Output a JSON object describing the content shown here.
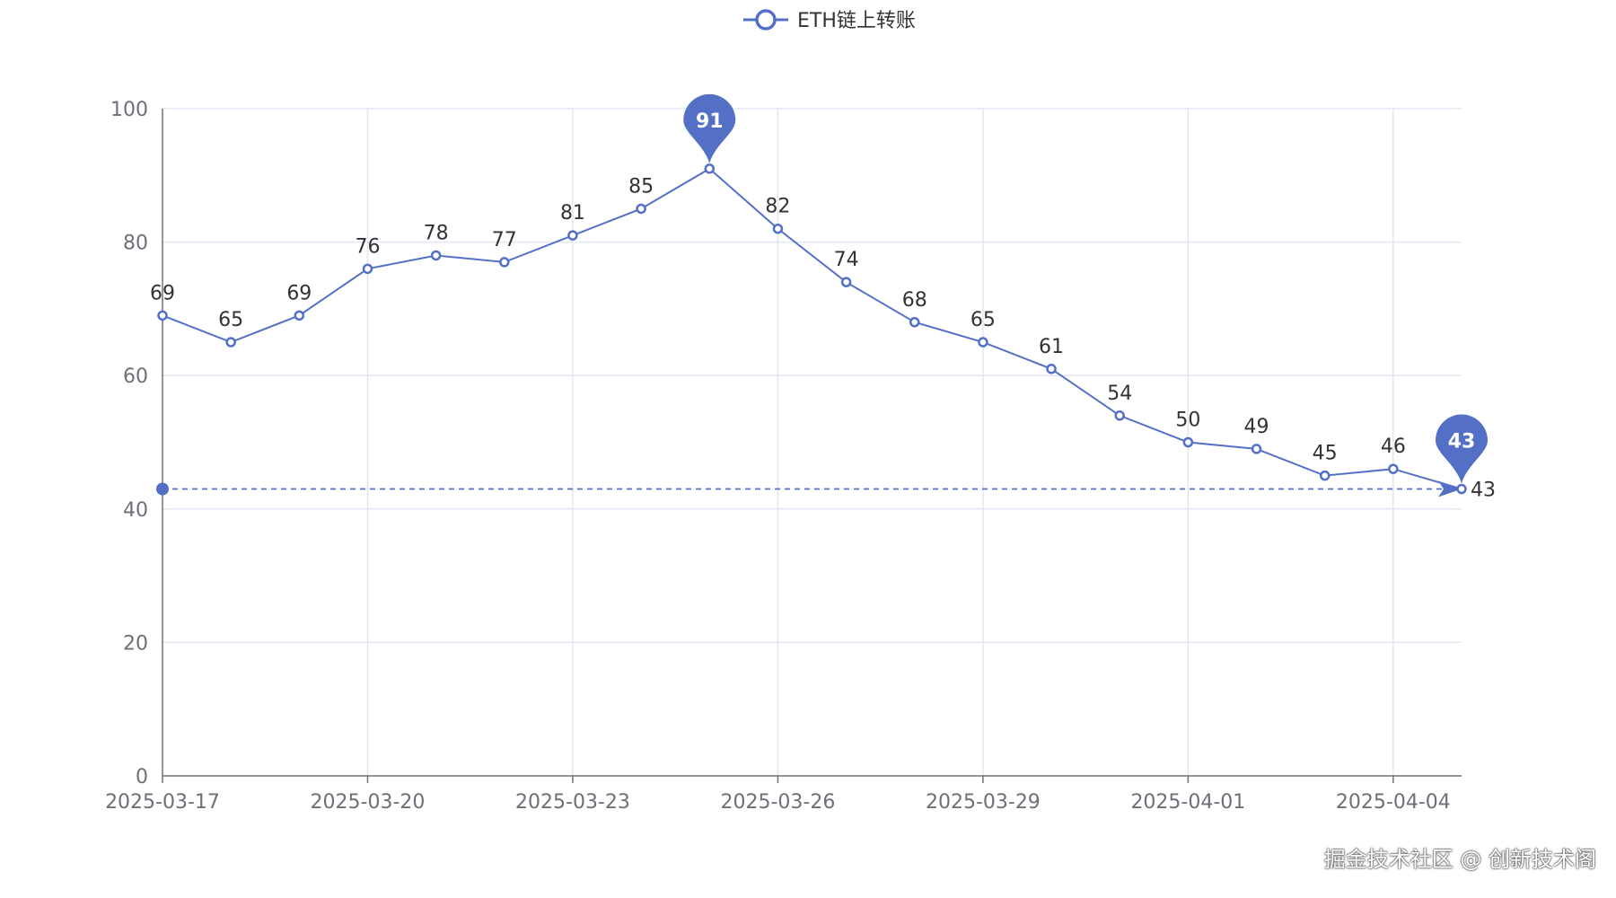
{
  "chart_data": {
    "type": "line",
    "x": [
      "2025-03-17",
      "2025-03-18",
      "2025-03-19",
      "2025-03-20",
      "2025-03-21",
      "2025-03-22",
      "2025-03-23",
      "2025-03-24",
      "2025-03-25",
      "2025-03-26",
      "2025-03-27",
      "2025-03-28",
      "2025-03-29",
      "2025-03-30",
      "2025-03-31",
      "2025-04-01",
      "2025-04-02",
      "2025-04-03",
      "2025-04-04",
      "2025-04-05"
    ],
    "x_tick_labels": [
      "2025-03-17",
      "2025-03-20",
      "2025-03-23",
      "2025-03-26",
      "2025-03-29",
      "2025-04-01",
      "2025-04-04"
    ],
    "series": [
      {
        "name": "ETH链上转账",
        "values": [
          69,
          65,
          69,
          76,
          78,
          77,
          81,
          85,
          91,
          82,
          74,
          68,
          65,
          61,
          54,
          50,
          49,
          45,
          46,
          43
        ],
        "color": "#5470c6"
      }
    ],
    "ylim": [
      0,
      100
    ],
    "y_ticks": [
      0,
      20,
      40,
      60,
      80,
      100
    ],
    "grid": true,
    "legend_position": "top-center",
    "mark_points": [
      {
        "type": "max",
        "label": "91",
        "value": 91,
        "x": "2025-03-25"
      },
      {
        "type": "min",
        "label": "43",
        "value": 43,
        "x": "2025-04-05"
      }
    ],
    "mark_line": {
      "from_x": "2025-03-17",
      "to_x": "2025-04-05",
      "value": 43,
      "style": "dashed",
      "label": "43"
    }
  },
  "watermark": "掘金技术社区 @ 创新技术阁"
}
